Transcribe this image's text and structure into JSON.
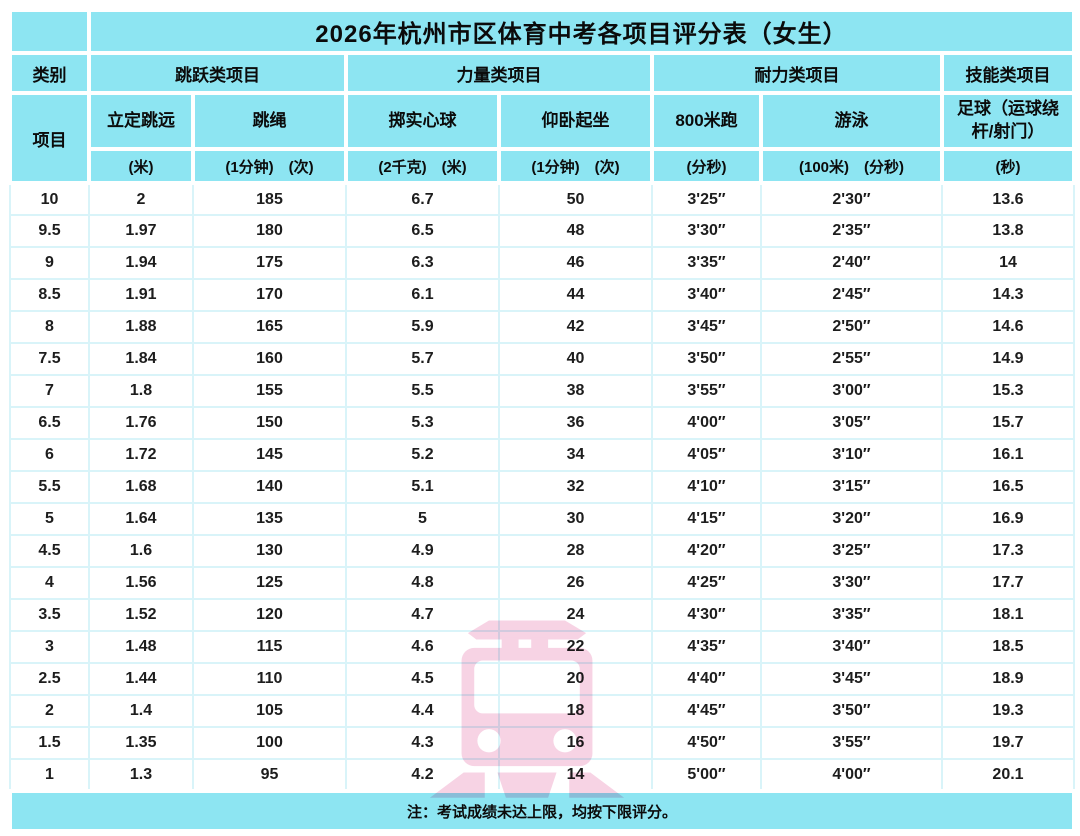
{
  "colors": {
    "header_cyan": "#8de5f2",
    "gridline_cyan": "#d9f4f9",
    "data_text": "#1d1d1d",
    "watermark_pink": "#f2b8d4",
    "page_background": "#ffffff"
  },
  "title": "2026年杭州市区体育中考各项目评分表（女生）",
  "header": {
    "category_label": "类别",
    "item_label": "项目",
    "groups": [
      {
        "label": "跳跃类项目",
        "span": 2
      },
      {
        "label": "力量类项目",
        "span": 2
      },
      {
        "label": "耐力类项目",
        "span": 2
      },
      {
        "label": "技能类项目",
        "span": 1
      }
    ],
    "items": [
      "立定跳远",
      "跳绳",
      "掷实心球",
      "仰卧起坐",
      "800米跑",
      "游泳",
      "足球（运球绕杆/射门）"
    ],
    "units": [
      "(米)",
      "(1分钟)　(次)",
      "(2千克)　(米)",
      "(1分钟)　(次)",
      "(分秒)",
      "(100米)　(分秒)",
      "(秒)"
    ]
  },
  "rows": [
    [
      "10",
      "2",
      "185",
      "6.7",
      "50",
      "3'25″",
      "2'30″",
      "13.6"
    ],
    [
      "9.5",
      "1.97",
      "180",
      "6.5",
      "48",
      "3'30″",
      "2'35″",
      "13.8"
    ],
    [
      "9",
      "1.94",
      "175",
      "6.3",
      "46",
      "3'35″",
      "2'40″",
      "14"
    ],
    [
      "8.5",
      "1.91",
      "170",
      "6.1",
      "44",
      "3'40″",
      "2'45″",
      "14.3"
    ],
    [
      "8",
      "1.88",
      "165",
      "5.9",
      "42",
      "3'45″",
      "2'50″",
      "14.6"
    ],
    [
      "7.5",
      "1.84",
      "160",
      "5.7",
      "40",
      "3'50″",
      "2'55″",
      "14.9"
    ],
    [
      "7",
      "1.8",
      "155",
      "5.5",
      "38",
      "3'55″",
      "3'00″",
      "15.3"
    ],
    [
      "6.5",
      "1.76",
      "150",
      "5.3",
      "36",
      "4'00″",
      "3'05″",
      "15.7"
    ],
    [
      "6",
      "1.72",
      "145",
      "5.2",
      "34",
      "4'05″",
      "3'10″",
      "16.1"
    ],
    [
      "5.5",
      "1.68",
      "140",
      "5.1",
      "32",
      "4'10″",
      "3'15″",
      "16.5"
    ],
    [
      "5",
      "1.64",
      "135",
      "5",
      "30",
      "4'15″",
      "3'20″",
      "16.9"
    ],
    [
      "4.5",
      "1.6",
      "130",
      "4.9",
      "28",
      "4'20″",
      "3'25″",
      "17.3"
    ],
    [
      "4",
      "1.56",
      "125",
      "4.8",
      "26",
      "4'25″",
      "3'30″",
      "17.7"
    ],
    [
      "3.5",
      "1.52",
      "120",
      "4.7",
      "24",
      "4'30″",
      "3'35″",
      "18.1"
    ],
    [
      "3",
      "1.48",
      "115",
      "4.6",
      "22",
      "4'35″",
      "3'40″",
      "18.5"
    ],
    [
      "2.5",
      "1.44",
      "110",
      "4.5",
      "20",
      "4'40″",
      "3'45″",
      "18.9"
    ],
    [
      "2",
      "1.4",
      "105",
      "4.4",
      "18",
      "4'45″",
      "3'50″",
      "19.3"
    ],
    [
      "1.5",
      "1.35",
      "100",
      "4.3",
      "16",
      "4'50″",
      "3'55″",
      "19.7"
    ],
    [
      "1",
      "1.3",
      "95",
      "4.2",
      "14",
      "5'00″",
      "4'00″",
      "20.1"
    ]
  ],
  "note": "注：考试成绩未达上限，均按下限评分。",
  "watermark": {
    "icon": "train-icon"
  }
}
